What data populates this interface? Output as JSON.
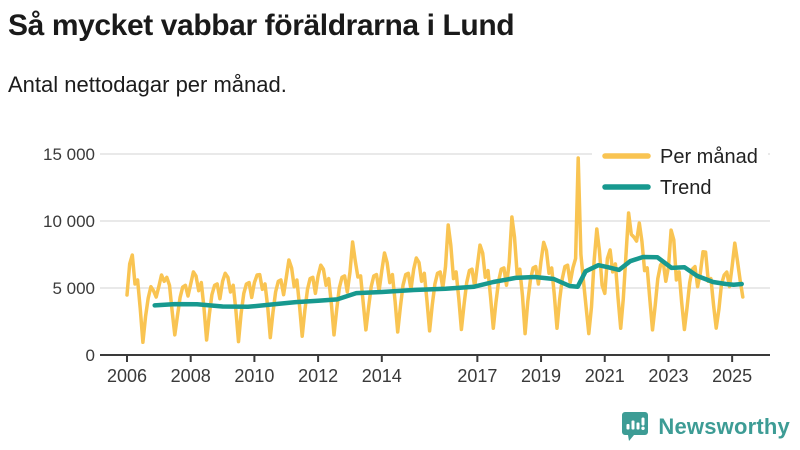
{
  "title": "Så mycket vabbar föräldrarna i Lund",
  "subtitle": "Antal nettodagar per månad.",
  "branding": {
    "logo_text": "Newsworthy",
    "logo_color": "#3D9C95"
  },
  "colors": {
    "per_month_line": "#F9C452",
    "trend_line": "#17998F",
    "grid": "#e2e2e2",
    "axis": "#3a3a3a",
    "legend_bg": "#ffffff"
  },
  "chart_data": {
    "type": "line",
    "title": "Så mycket vabbar föräldrarna i Lund",
    "subtitle": "Antal nettodagar per månad.",
    "xlabel": "",
    "ylabel": "Antal nettodagar per månad",
    "ylim": [
      0,
      15000
    ],
    "grid": true,
    "legend_position": "top-right",
    "yticks": [
      0,
      5000,
      10000,
      15000
    ],
    "ytick_labels": [
      "0",
      "5 000",
      "10 000",
      "15 000"
    ],
    "xticks": [
      2006,
      2008,
      2010,
      2012,
      2014,
      2017,
      2019,
      2021,
      2023,
      2025
    ],
    "series": [
      {
        "name": "Per månad",
        "color": "#F9C452",
        "start": "2006-01",
        "end": "2025-05",
        "monthly_values_by_year": {
          "2006": [
            4480,
            6800,
            7460,
            5300,
            5600,
            3400,
            950,
            2900,
            4250,
            5100,
            4800,
            4330
          ],
          "2007": [
            5100,
            5970,
            5500,
            5800,
            5200,
            3300,
            1500,
            2900,
            4300,
            5070,
            5200,
            4400
          ],
          "2008": [
            5300,
            6200,
            5900,
            4800,
            5400,
            3500,
            1120,
            3000,
            4500,
            5200,
            5300,
            4200
          ],
          "2009": [
            5500,
            6100,
            5800,
            4700,
            5200,
            3400,
            1000,
            3100,
            4600,
            5300,
            5400,
            4300
          ],
          "2010": [
            5400,
            5970,
            6000,
            4900,
            5300,
            3600,
            1300,
            3200,
            4700,
            5500,
            5600,
            4500
          ],
          "2011": [
            5800,
            7090,
            6500,
            5100,
            5600,
            3700,
            1400,
            3300,
            4900,
            5700,
            5800,
            4600
          ],
          "2012": [
            5900,
            6700,
            6400,
            5200,
            5700,
            3800,
            1500,
            3400,
            5000,
            5800,
            5900,
            4700
          ],
          "2013": [
            6200,
            8430,
            7000,
            5820,
            5900,
            3900,
            1870,
            3500,
            5100,
            5900,
            6000,
            4800
          ],
          "2014": [
            6300,
            7610,
            6900,
            5400,
            6000,
            4000,
            1720,
            3600,
            5200,
            6000,
            6100,
            4900
          ],
          "2015": [
            6400,
            7240,
            6900,
            5500,
            6100,
            4100,
            1800,
            3700,
            5300,
            6100,
            6200,
            5000
          ],
          "2016": [
            6600,
            9700,
            8200,
            5700,
            6200,
            4200,
            1900,
            3800,
            5400,
            6300,
            6400,
            5100
          ],
          "2017": [
            6700,
            8200,
            7600,
            5800,
            6300,
            4300,
            2000,
            3900,
            5500,
            6400,
            6500,
            5200
          ],
          "2018": [
            6900,
            10300,
            8800,
            6000,
            6400,
            4400,
            1600,
            4000,
            5600,
            6500,
            6600,
            5300
          ],
          "2019": [
            7000,
            8400,
            7800,
            6100,
            6500,
            4500,
            2000,
            4100,
            5700,
            6600,
            6700,
            5400
          ],
          "2020": [
            6500,
            7200,
            14700,
            7500,
            5500,
            3500,
            1600,
            3600,
            7000,
            9400,
            7800,
            5200
          ],
          "2021": [
            4600,
            7200,
            7840,
            6200,
            6800,
            4300,
            2000,
            4200,
            7500,
            10600,
            9000,
            8800
          ],
          "2022": [
            8500,
            9850,
            8500,
            6300,
            6500,
            4100,
            1870,
            3700,
            5700,
            6700,
            7000,
            5500
          ],
          "2023": [
            6600,
            9320,
            8580,
            5600,
            6200,
            3900,
            1900,
            3500,
            5400,
            6400,
            6600,
            5100
          ],
          "2024": [
            6100,
            7700,
            7680,
            5500,
            5700,
            3700,
            2010,
            3400,
            5300,
            5970,
            6190,
            5100
          ],
          "2025": [
            6600,
            8350,
            7000,
            5600,
            4330
          ]
        }
      },
      {
        "name": "Trend",
        "color": "#17998F",
        "points": [
          [
            2006.87,
            3700
          ],
          [
            2007.5,
            3800
          ],
          [
            2008.2,
            3780
          ],
          [
            2009.0,
            3620
          ],
          [
            2009.8,
            3600
          ],
          [
            2010.5,
            3760
          ],
          [
            2011.3,
            3950
          ],
          [
            2012.0,
            4050
          ],
          [
            2012.6,
            4150
          ],
          [
            2013.2,
            4620
          ],
          [
            2014.0,
            4700
          ],
          [
            2015.0,
            4850
          ],
          [
            2016.0,
            4950
          ],
          [
            2016.9,
            5100
          ],
          [
            2017.5,
            5450
          ],
          [
            2018.2,
            5750
          ],
          [
            2018.8,
            5820
          ],
          [
            2019.4,
            5670
          ],
          [
            2019.9,
            5150
          ],
          [
            2020.15,
            5100
          ],
          [
            2020.4,
            6250
          ],
          [
            2020.8,
            6700
          ],
          [
            2021.1,
            6550
          ],
          [
            2021.45,
            6350
          ],
          [
            2021.8,
            7000
          ],
          [
            2022.2,
            7310
          ],
          [
            2022.65,
            7300
          ],
          [
            2023.1,
            6500
          ],
          [
            2023.5,
            6550
          ],
          [
            2023.9,
            5900
          ],
          [
            2024.4,
            5450
          ],
          [
            2024.8,
            5300
          ],
          [
            2025.05,
            5250
          ],
          [
            2025.3,
            5300
          ]
        ]
      }
    ]
  }
}
